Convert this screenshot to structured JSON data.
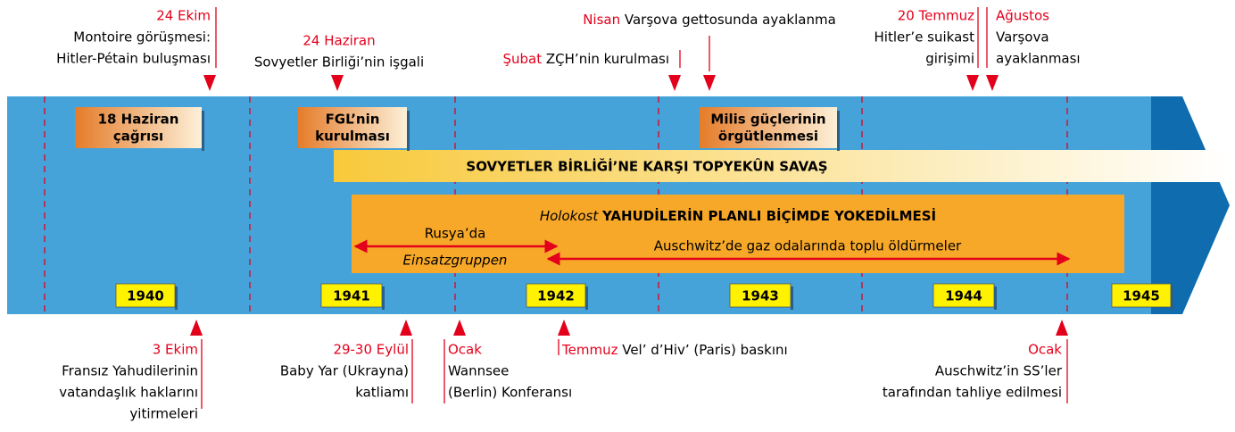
{
  "top_events": [
    {
      "date": "24 Ekim",
      "lines": [
        "Montoire görüşmesi:",
        "Hitler-Pétain buluşması"
      ]
    },
    {
      "date": "24 Haziran",
      "lines": [
        "Sovyetler Birliği’nin işgali"
      ]
    },
    {
      "date": "Şubat",
      "lines": [
        "ZÇH’nin kurulması"
      ]
    },
    {
      "date": "Nisan",
      "lines": [
        "Varşova gettosunda ayaklanma"
      ]
    },
    {
      "date": "20 Temmuz",
      "lines": [
        "Hitler’e suikast",
        "girişimi"
      ]
    },
    {
      "date": "Ağustos",
      "lines": [
        "Varşova",
        "ayaklanması"
      ]
    }
  ],
  "bottom_events": [
    {
      "date": "3 Ekim",
      "lines": [
        "Fransız Yahudilerinin",
        "vatandaşlık haklarını",
        "yitirmeleri"
      ]
    },
    {
      "date": "29-30 Eylül",
      "lines": [
        "Baby Yar (Ukrayna)",
        "katliamı"
      ]
    },
    {
      "date": "Ocak",
      "lines": [
        "Wannsee",
        "(Berlin) Konferansı"
      ]
    },
    {
      "date": "Temmuz",
      "lines": [
        "Vel’ d’Hiv’ (Paris) baskını"
      ]
    },
    {
      "date": "Ocak",
      "lines": [
        "Auschwitz’in SS’ler",
        "tarafından tahliye edilmesi"
      ]
    }
  ],
  "boxes": [
    {
      "lines": [
        "18 Haziran",
        "çağrısı"
      ]
    },
    {
      "lines": [
        "FGL’nin",
        "kurulması"
      ]
    },
    {
      "lines": [
        "Milis güçlerinin",
        "örgütlenmesi"
      ]
    }
  ],
  "war_bar": "SOVYETLER BİRLİĞİ’NE KARŞI TOPYEKÛN SAVAŞ",
  "holocaust": {
    "italic": "Holokost",
    "title": "YAHUDİLERİN PLANLI BİÇİMDE YOKEDİLMESİ",
    "russia": [
      "Rusya’da",
      "Einsatzgruppen"
    ],
    "auschwitz": "Auschwitz’de gaz odalarında toplu öldürmeler"
  },
  "years": [
    "1940",
    "1941",
    "1942",
    "1943",
    "1944",
    "1945"
  ]
}
